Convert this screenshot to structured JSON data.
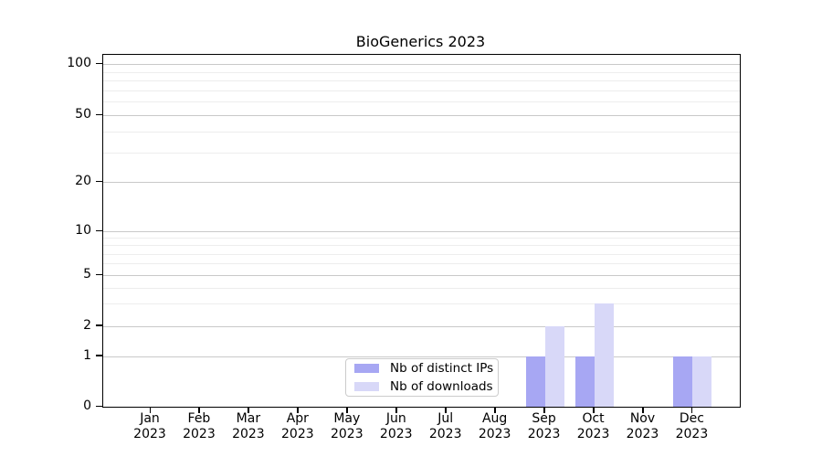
{
  "chart_data": {
    "type": "bar",
    "title": "BioGenerics 2023",
    "months": [
      "Jan",
      "Feb",
      "Mar",
      "Apr",
      "May",
      "Jun",
      "Jul",
      "Aug",
      "Sep",
      "Oct",
      "Nov",
      "Dec"
    ],
    "year_label": "2023",
    "series": [
      {
        "name": "Nb of distinct IPs",
        "color": "#a7a7f3",
        "values": [
          0,
          0,
          0,
          0,
          0,
          0,
          0,
          0,
          1,
          1,
          0,
          1
        ]
      },
      {
        "name": "Nb of downloads",
        "color": "#d8d8f8",
        "values": [
          0,
          0,
          0,
          0,
          0,
          0,
          0,
          0,
          2,
          3,
          0,
          1
        ]
      }
    ],
    "yticks": [
      0,
      1,
      2,
      5,
      10,
      20,
      50,
      100
    ],
    "minor_gridlines": [
      3,
      4,
      6,
      7,
      8,
      9,
      30,
      40,
      60,
      70,
      80,
      90
    ],
    "ylim": [
      0,
      110
    ],
    "yscale": "log (linear below 1)",
    "grid": true,
    "legend_position": "lower center"
  },
  "colors": {
    "background": "#ffffff",
    "spine": "#000000",
    "grid_major": "#c9c9c9",
    "grid_minor": "#ededed",
    "text": "#000000",
    "legend_border": "#cccccc"
  }
}
